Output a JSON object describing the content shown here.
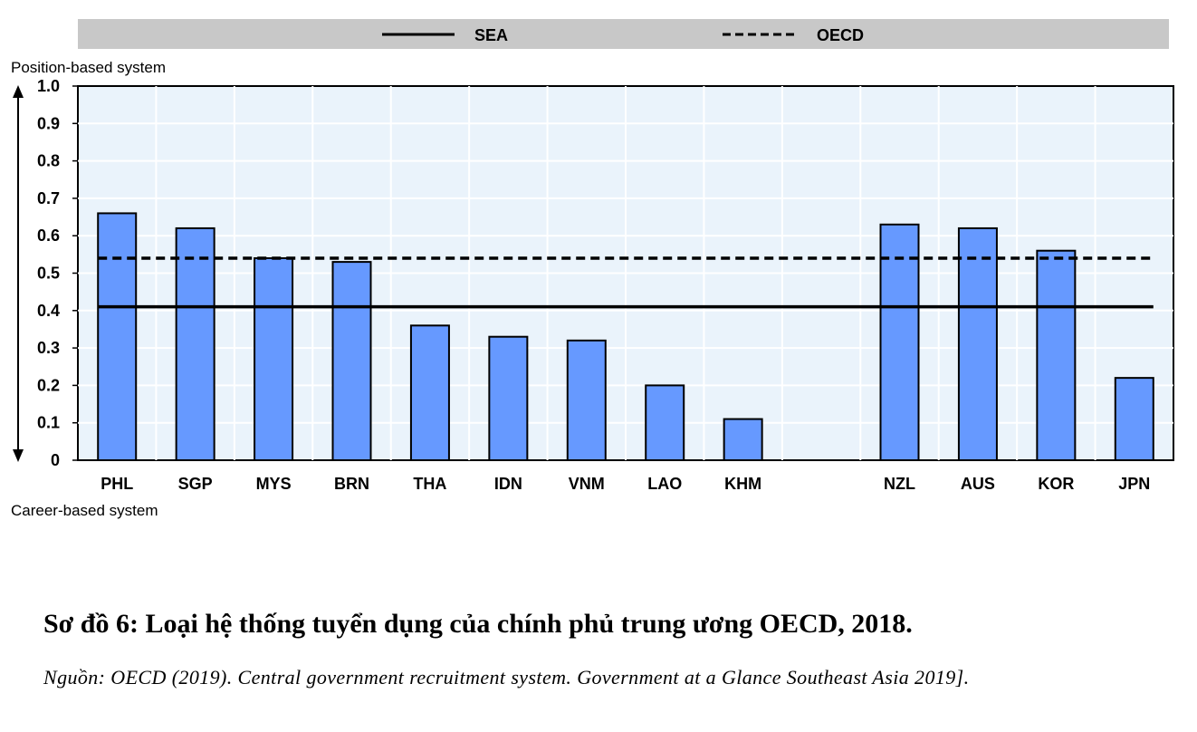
{
  "chart_data": {
    "type": "bar",
    "categories": [
      "PHL",
      "SGP",
      "MYS",
      "BRN",
      "THA",
      "IDN",
      "VNM",
      "LAO",
      "KHM",
      "",
      "NZL",
      "AUS",
      "KOR",
      "JPN"
    ],
    "values": [
      0.66,
      0.62,
      0.54,
      0.53,
      0.36,
      0.33,
      0.32,
      0.2,
      0.11,
      null,
      0.63,
      0.62,
      0.56,
      0.22
    ],
    "reference_lines": [
      {
        "name": "SEA",
        "value": 0.41,
        "style": "solid"
      },
      {
        "name": "OECD",
        "value": 0.54,
        "style": "dashed"
      }
    ],
    "ylim": [
      0,
      1.0
    ],
    "yticks": [
      "0",
      "0.1",
      "0.2",
      "0.3",
      "0.4",
      "0.5",
      "0.6",
      "0.7",
      "0.8",
      "0.9",
      "1.0"
    ],
    "top_label": "Position-based system",
    "bottom_label": "Career-based system",
    "legend_position": "top",
    "grid": true,
    "colors": {
      "bar": "#6699ff",
      "plot_bg": "#eaf3fb",
      "grid": "#ffffff",
      "legend_bg": "#c8c8c8",
      "line": "#000000"
    }
  },
  "caption": {
    "title": "Sơ đồ 6: Loại hệ thống tuyển dụng của chính phủ trung ương OECD, 2018.",
    "source": "Nguồn: OECD (2019). Central government recruitment system. Government at a Glance Southeast Asia 2019]."
  }
}
